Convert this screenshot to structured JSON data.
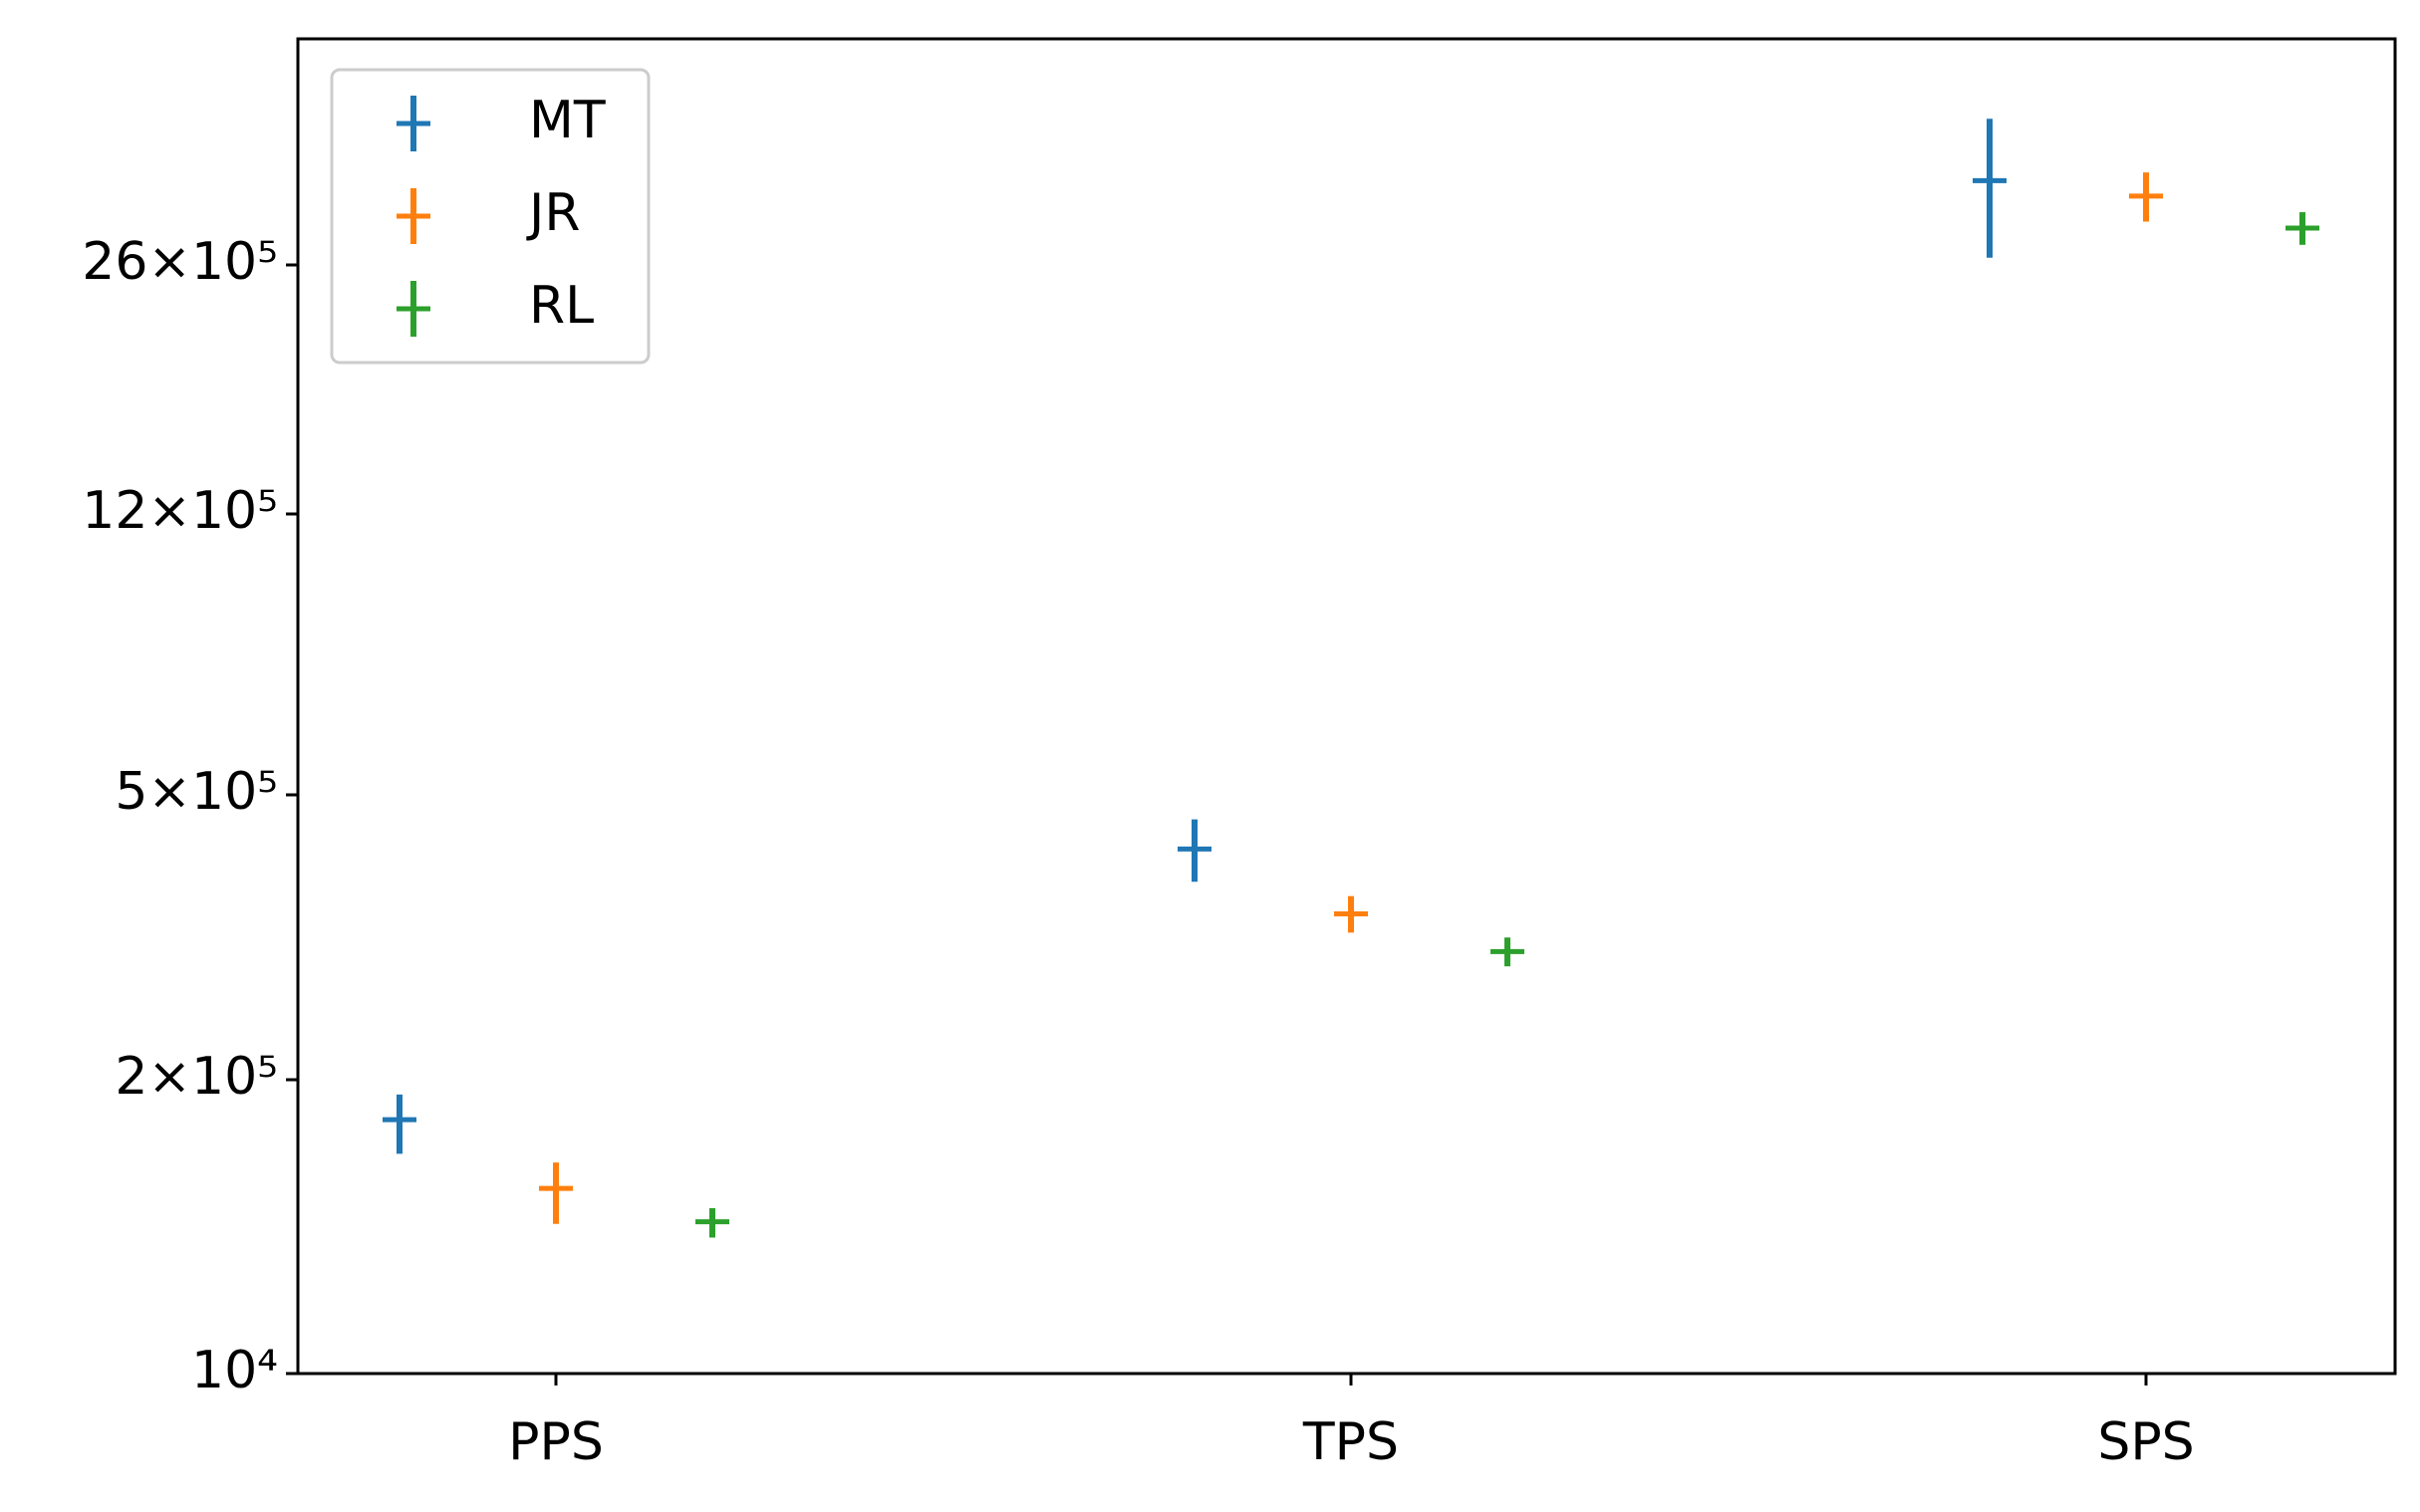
{
  "chart_data": {
    "type": "errorbar",
    "categories": [
      "PPS",
      "TPS",
      "SPS"
    ],
    "series": [
      {
        "name": "MT",
        "color": "#1f77b4",
        "values": [
          133000,
          420000,
          3390000
        ],
        "errors": [
          39000,
          42000,
          730000
        ]
      },
      {
        "name": "JR",
        "color": "#ff7f0e",
        "values": [
          66000,
          341000,
          3230000
        ],
        "errors": [
          20000,
          20000,
          250000
        ]
      },
      {
        "name": "RL",
        "color": "#2ca02c",
        "values": [
          47000,
          302000,
          2920000
        ],
        "errors": [
          7000,
          14000,
          150000
        ]
      }
    ],
    "ylim": [
      10000,
      5300000
    ],
    "yticks": [
      {
        "value": 10000,
        "label": "10⁴"
      },
      {
        "value": 200000,
        "label": "2×10⁵"
      },
      {
        "value": 500000,
        "label": "5×10⁵"
      },
      {
        "value": 1200000,
        "label": "12×10⁵"
      },
      {
        "value": 2600000,
        "label": "26×10⁵"
      }
    ],
    "legend": "upper left"
  }
}
